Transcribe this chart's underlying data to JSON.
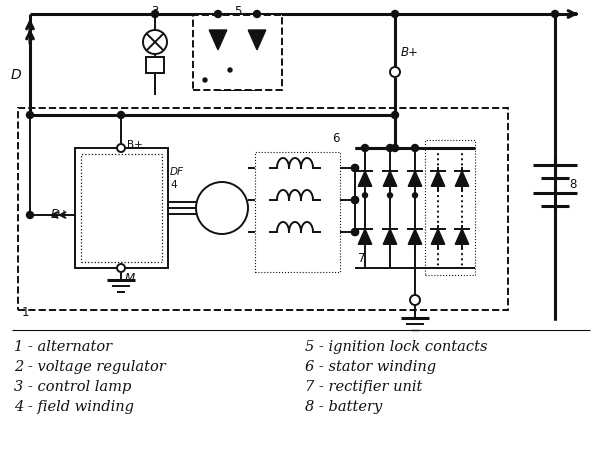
{
  "bg_color": "#ffffff",
  "line_color": "#111111",
  "legend_items_left": [
    "1 - alternator",
    "2 - voltage regulator",
    "3 - control lamp",
    "4 - field winding"
  ],
  "legend_items_right": [
    "5 - ignition lock contacts",
    "6 - stator winding",
    "7 - rectifier unit",
    "8 - battery"
  ],
  "font_size_legend": 10.5
}
